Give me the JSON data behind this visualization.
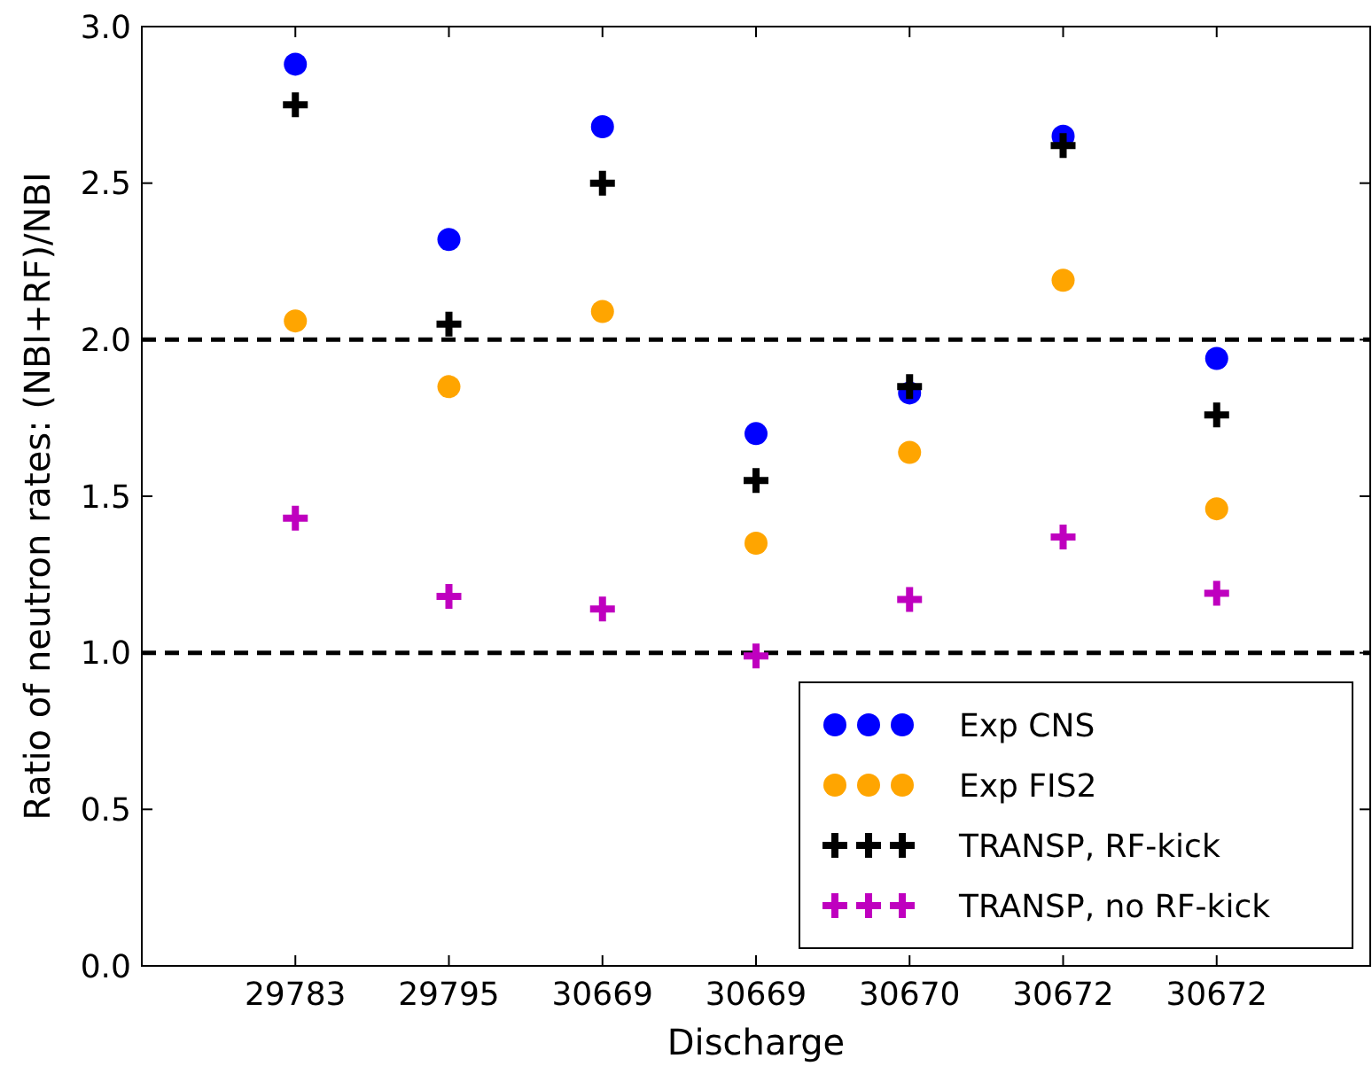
{
  "chart_data": {
    "type": "scatter",
    "xlabel": "Discharge",
    "ylabel": "Ratio of neutron rates: (NBI+RF)/NBI",
    "categories": [
      "29783",
      "29795",
      "30669",
      "30669",
      "30670",
      "30672",
      "30672"
    ],
    "ylim": [
      0,
      3
    ],
    "yticks": [
      {
        "value": 0,
        "label": "0.0"
      },
      {
        "value": 0.5,
        "label": "0.5"
      },
      {
        "value": 1,
        "label": "1.0"
      },
      {
        "value": 1.5,
        "label": "1.5"
      },
      {
        "value": 2,
        "label": "2.0"
      },
      {
        "value": 2.5,
        "label": "2.5"
      },
      {
        "value": 3,
        "label": "3.0"
      }
    ],
    "legend": "bottom right",
    "grid": false,
    "ref_lines": [
      {
        "axis": "y",
        "value": 2,
        "color": "#000000",
        "line_style": "dashed"
      },
      {
        "axis": "y",
        "value": 1,
        "color": "#000000",
        "line_style": "dashed"
      }
    ],
    "series": [
      {
        "name": "Exp CNS",
        "color": "#0000ff",
        "marker": "circle",
        "values": [
          2.88,
          2.32,
          2.68,
          1.7,
          1.83,
          2.65,
          1.94
        ]
      },
      {
        "name": "Exp FIS2",
        "color": "#ffa500",
        "marker": "circle",
        "values": [
          2.06,
          1.85,
          2.09,
          1.35,
          1.64,
          2.19,
          1.46
        ]
      },
      {
        "name": "TRANSP, RF-kick",
        "color": "#000000",
        "marker": "cross",
        "values": [
          2.75,
          2.05,
          2.5,
          1.55,
          1.85,
          2.62,
          1.76
        ]
      },
      {
        "name": "TRANSP, no RF-kick",
        "color": "#bf00bf",
        "marker": "cross",
        "values": [
          1.43,
          1.18,
          1.14,
          0.99,
          1.17,
          1.37,
          1.19
        ]
      }
    ]
  }
}
